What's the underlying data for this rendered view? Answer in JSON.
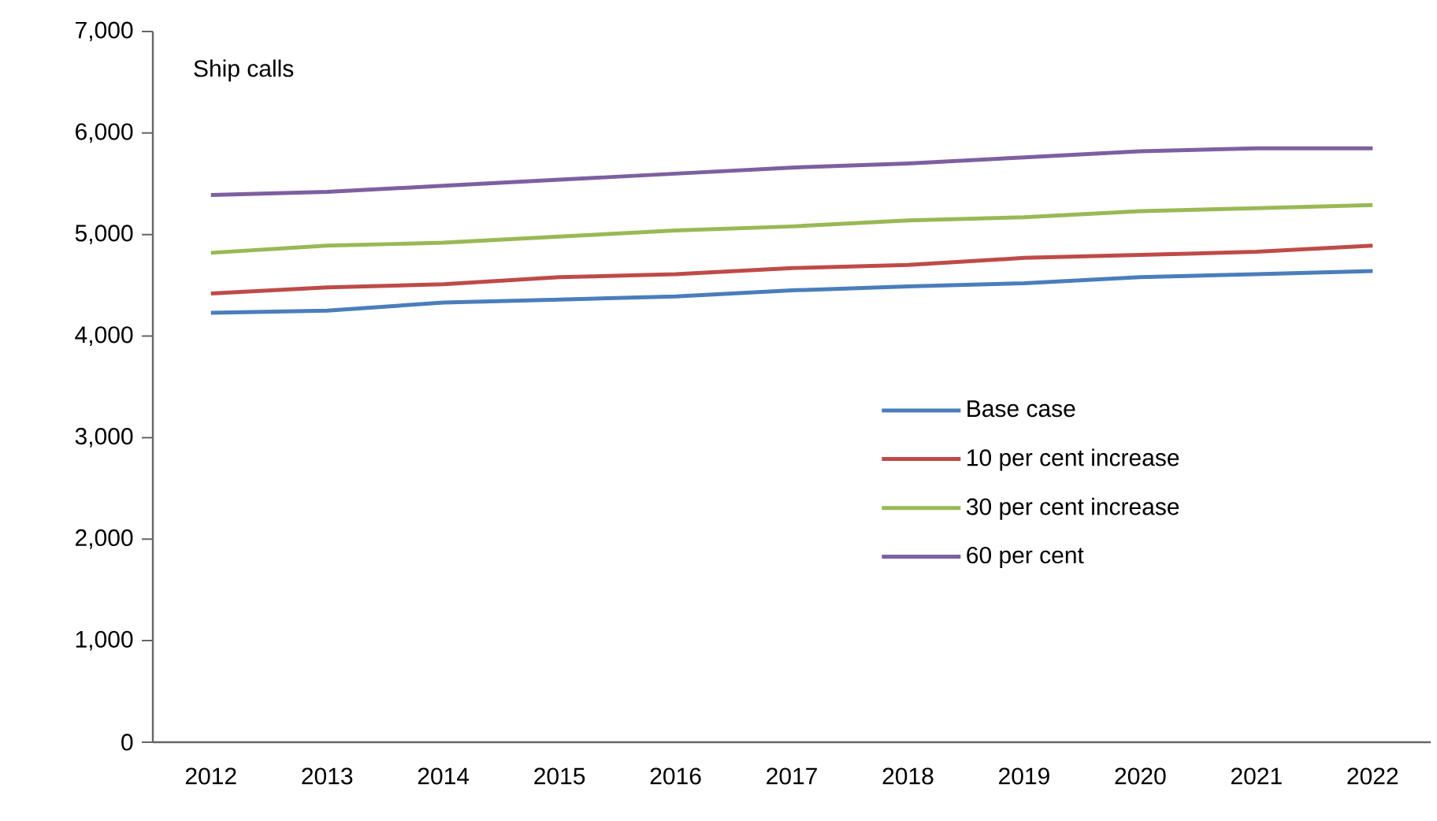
{
  "chart_data": {
    "type": "line",
    "ylabel": "Ship calls",
    "categories": [
      "2012",
      "2013",
      "2014",
      "2015",
      "2016",
      "2017",
      "2018",
      "2019",
      "2020",
      "2021",
      "2022"
    ],
    "series": [
      {
        "name": "Base case",
        "color": "#4a7ebb",
        "values": [
          4230,
          4250,
          4330,
          4360,
          4390,
          4450,
          4490,
          4520,
          4580,
          4610,
          4640
        ]
      },
      {
        "name": "10 per cent increase",
        "color": "#be4b48",
        "values": [
          4420,
          4480,
          4510,
          4580,
          4610,
          4670,
          4700,
          4770,
          4800,
          4830,
          4890
        ]
      },
      {
        "name": "30 per cent increase",
        "color": "#98b954",
        "values": [
          4820,
          4890,
          4920,
          4980,
          5040,
          5080,
          5140,
          5170,
          5230,
          5260,
          5290
        ]
      },
      {
        "name": "60 per cent",
        "color": "#7d60a0",
        "values": [
          5390,
          5420,
          5480,
          5540,
          5600,
          5660,
          5700,
          5760,
          5820,
          5850,
          5850
        ]
      }
    ],
    "ylim": [
      0,
      7000
    ],
    "yticks": [
      0,
      {
        "value": 1000,
        "label": "1,000"
      },
      {
        "value": 2000,
        "label": "2,000"
      },
      {
        "value": 3000,
        "label": "3,000"
      },
      {
        "value": 4000,
        "label": "4,000"
      },
      {
        "value": 5000,
        "label": "5,000"
      },
      {
        "value": 6000,
        "label": "6,000"
      },
      {
        "value": 7000,
        "label": "7,000"
      }
    ],
    "grid": false,
    "legend": "right",
    "marker": "none",
    "line_style": "solid"
  }
}
